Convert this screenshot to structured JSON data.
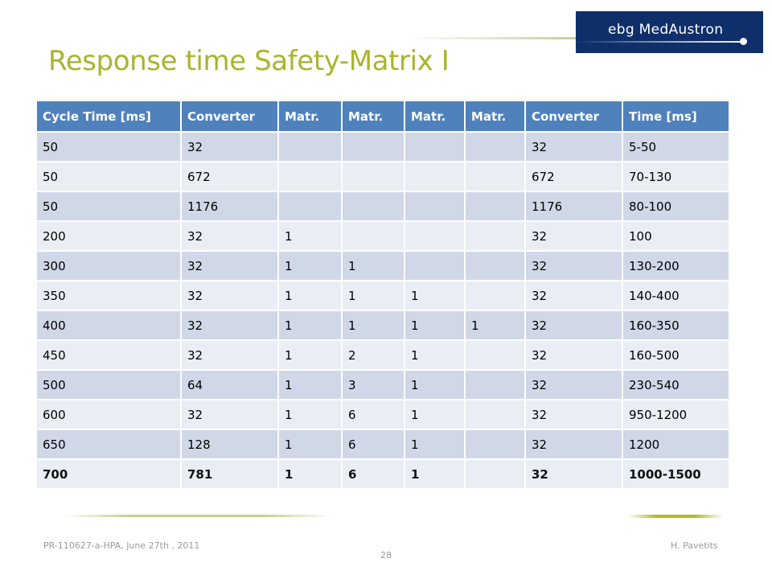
{
  "logo": {
    "text": "ebg MedAustron"
  },
  "slide": {
    "title": "Response time Safety-Matrix I"
  },
  "table": {
    "headers": [
      "Cycle Time [ms]",
      "Converter",
      "Matr.",
      "Matr.",
      "Matr.",
      "Matr.",
      "Converter",
      "Time [ms]"
    ],
    "rows": [
      [
        "50",
        "32",
        "",
        "",
        "",
        "",
        "32",
        "5-50"
      ],
      [
        "50",
        "672",
        "",
        "",
        "",
        "",
        "672",
        "70-130"
      ],
      [
        "50",
        "1176",
        "",
        "",
        "",
        "",
        "1176",
        "80-100"
      ],
      [
        "200",
        "32",
        "1",
        "",
        "",
        "",
        "32",
        "100"
      ],
      [
        "300",
        "32",
        "1",
        "1",
        "",
        "",
        "32",
        "130-200"
      ],
      [
        "350",
        "32",
        "1",
        "1",
        "1",
        "",
        "32",
        "140-400"
      ],
      [
        "400",
        "32",
        "1",
        "1",
        "1",
        "1",
        "32",
        "160-350"
      ],
      [
        "450",
        "32",
        "1",
        "2",
        "1",
        "",
        "32",
        "160-500"
      ],
      [
        "500",
        "64",
        "1",
        "3",
        "1",
        "",
        "32",
        "230-540"
      ],
      [
        "600",
        "32",
        "1",
        "6",
        "1",
        "",
        "32",
        "950-1200"
      ],
      [
        "650",
        "128",
        "1",
        "6",
        "1",
        "",
        "32",
        "1200"
      ],
      [
        "700",
        "781",
        "1",
        "6",
        "1",
        "",
        "32",
        "1000-1500"
      ]
    ]
  },
  "footer": {
    "left": "PR-110627-a-HPA, June 27th , 2011",
    "right": "H. Pavetits",
    "page": "28"
  },
  "colors": {
    "title": "#aab42a",
    "header_bg": "#4f81bd",
    "row_odd": "#d0d8e8",
    "row_even": "#e9edf4",
    "logo_bg": "#0f2f6b"
  }
}
